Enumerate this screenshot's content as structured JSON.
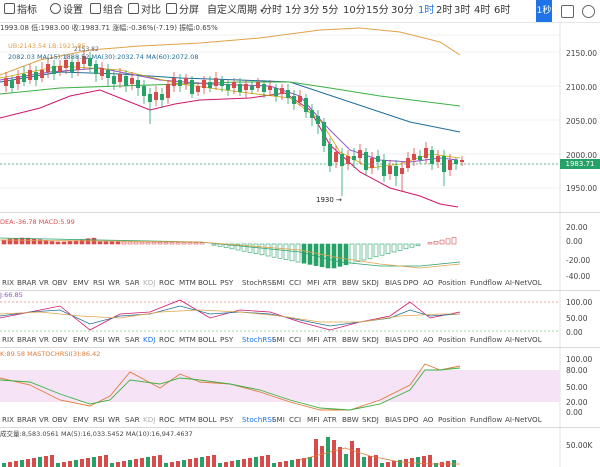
{
  "toolbar": {
    "indicators_label": "指标",
    "settings_label": "设置",
    "combo_label": "组合",
    "compare_label": "对比",
    "screen_label": "分屏",
    "custom_period_label": "自定义周期",
    "timeframes": [
      "分时",
      "1分",
      "3分",
      "5分",
      "10分",
      "15分",
      "30分",
      "1时",
      "2时",
      "3时",
      "4时",
      "6时"
    ],
    "active_timeframe": "1时",
    "live_label": "1秒"
  },
  "header": {
    "ohlc_text": "1993.08  低:1983.00  收:1983.71  涨幅:-0.36%(-7.19)  振幅:0.65%",
    "boll_text": "UB:2143.54  LB:1921.85",
    "ma_text": "2082.03  MA(15):1888.52  MA(30):2032.74  MA(60):2072.08",
    "annot_top": "2153.82",
    "annot_low": "1930"
  },
  "price_axis": [
    "2150.00",
    "2100.00",
    "2050.00",
    "2000.00",
    "1950.00"
  ],
  "current_price": "1983.71",
  "macd": {
    "header": "DEA:-36.78  MACD:5.99",
    "axis": [
      "20.00",
      "0.00",
      "-20.00",
      "-40.00"
    ]
  },
  "tabs": [
    "RIX",
    "BRAR",
    "VR",
    "OBV",
    "EMV",
    "RSI",
    "WR",
    "SAR",
    "KDJ",
    "ROC",
    "MTM",
    "BOLL",
    "PSY",
    "StochRSI",
    "SMI",
    "CCI",
    "MFI",
    "ATR",
    "BBW",
    "SKDJ",
    "BIAS",
    "DPO",
    "AO",
    "Position",
    "Fundflow",
    "AI-NetVOL"
  ],
  "tabs1_selected": "",
  "tabs2_selected": "StochRSI",
  "dim_tab": "KDJ",
  "kdj": {
    "header": "J:66.85",
    "axis": [
      "100.00",
      "50.00",
      "0.00"
    ]
  },
  "stochrsi": {
    "header": "K:89.58  MASTOCHRSI(3):86.42",
    "axis": [
      "100.00",
      "80.00",
      "50.00",
      "20.00",
      "0.00"
    ]
  },
  "volume": {
    "header": "成交量:8,583.0561  MA(5):16,033.5452  MA(10):16,947.4637",
    "axis": "50.00K"
  },
  "colors": {
    "up": "#d84b4b",
    "down": "#26a269",
    "accent": "#1e73e8",
    "ub": "#e0a24a",
    "lb": "#d0156a",
    "ma15": "#8e55c8",
    "ma30": "#1f6f9a",
    "ma60": "#3cb043"
  }
}
